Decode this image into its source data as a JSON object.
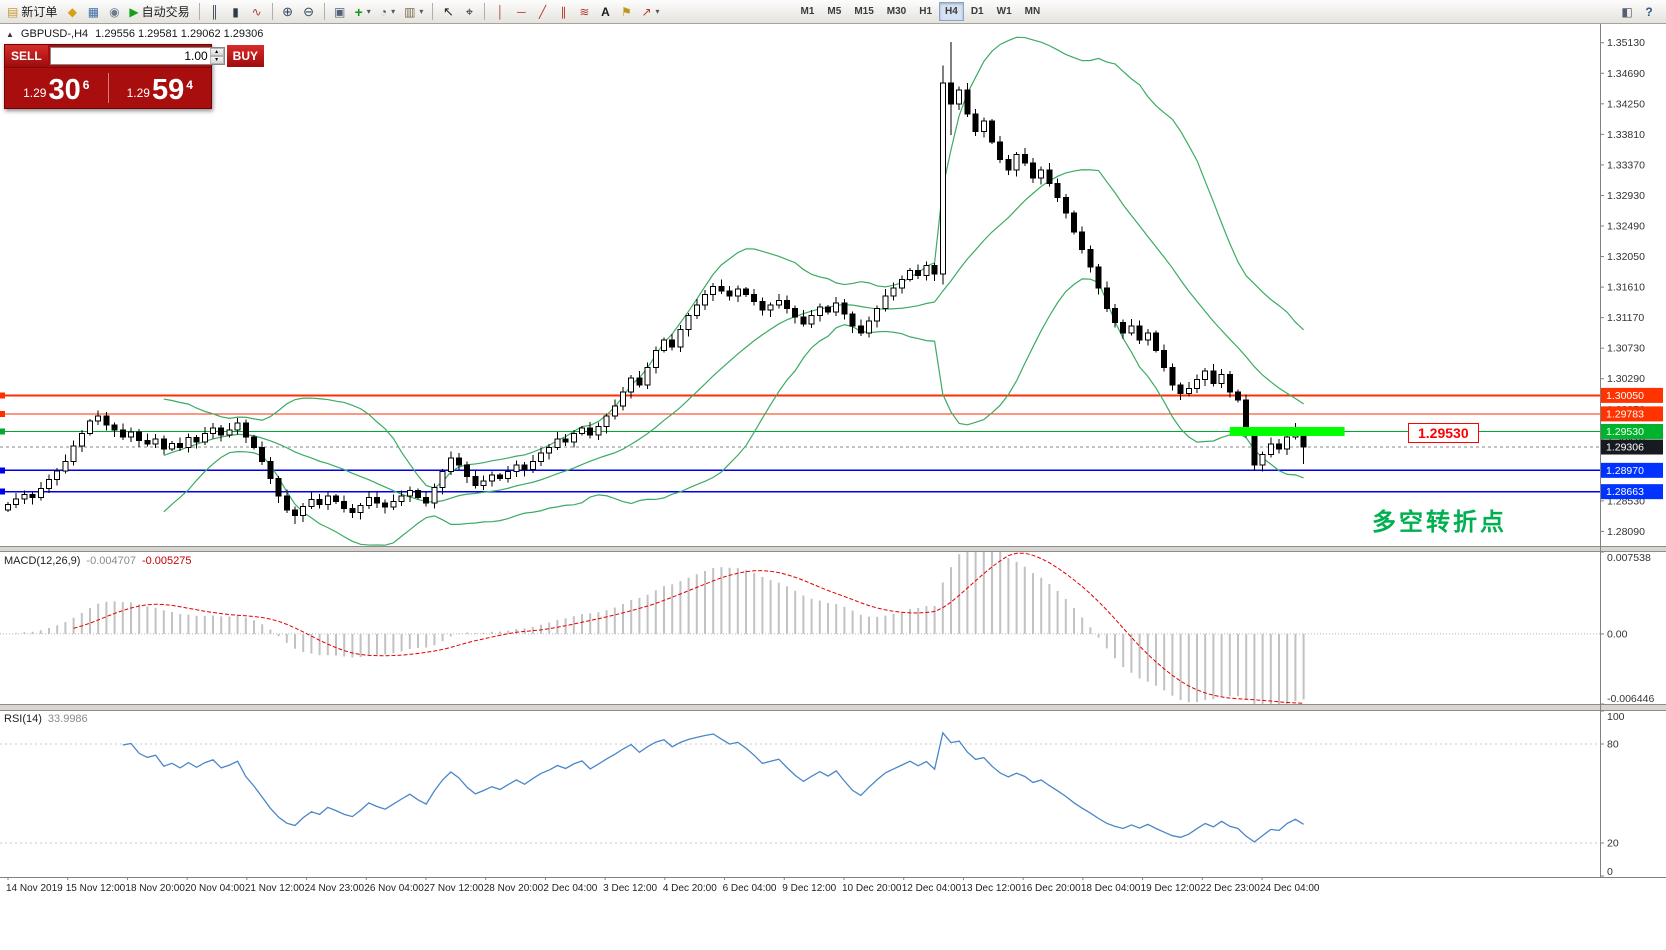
{
  "toolbar": {
    "dropdown_glyph": "▾",
    "buttons": [
      {
        "label": "新订单",
        "glyph": "▤"
      },
      {
        "glyph": "◆"
      },
      {
        "glyph": "▦"
      },
      {
        "glyph": "◉"
      },
      {
        "label": "自动交易",
        "glyph": "▶"
      },
      {
        "glyph": "║"
      },
      {
        "glyph": "▮"
      },
      {
        "glyph": "∿"
      },
      {
        "glyph": "⊕"
      },
      {
        "glyph": "⊖"
      },
      {
        "glyph": "▣"
      },
      {
        "glyph": "+"
      },
      {
        "glyph": "◔"
      },
      {
        "glyph": "▥"
      },
      {
        "glyph": "↖"
      },
      {
        "glyph": "⌖"
      },
      {
        "glyph": "│"
      },
      {
        "glyph": "─"
      },
      {
        "glyph": "╱"
      },
      {
        "glyph": "∥"
      },
      {
        "glyph": "≋"
      },
      {
        "glyph": "A"
      },
      {
        "glyph": "⚑"
      },
      {
        "glyph": "↗"
      },
      {
        "glyph": "◧"
      },
      {
        "glyph": "?"
      }
    ],
    "timeframes": [
      {
        "label": "M1"
      },
      {
        "label": "M5"
      },
      {
        "label": "M15"
      },
      {
        "label": "M30"
      },
      {
        "label": "H1"
      },
      {
        "label": "H4"
      },
      {
        "label": "D1"
      },
      {
        "label": "W1"
      },
      {
        "label": "MN"
      }
    ],
    "active_timeframe": "H4"
  },
  "chart_header": {
    "collapse_glyph": "▲",
    "symbol": "GBPUSD-,H4",
    "ohlc": "1.29556 1.29581 1.29062 1.29306"
  },
  "trade_panel": {
    "sell_label": "SELL",
    "buy_label": "BUY",
    "volume": "1.00",
    "spin_up": "▴",
    "spin_down": "▾",
    "sell_price_prefix": "1.29",
    "sell_price_big": "30",
    "sell_price_sup": "6",
    "buy_price_prefix": "1.29",
    "buy_price_big": "59",
    "buy_price_sup": "4"
  },
  "chart_data": {
    "type": "candlestick",
    "symbol": "GBPUSD-",
    "timeframe": "H4",
    "ohlc_header": {
      "open": "1.29556",
      "high": "1.29581",
      "low": "1.29062",
      "close": "1.29306"
    },
    "price_axis": {
      "min": 1.2788,
      "max": 1.354,
      "ticks": [
        "1.35130",
        "1.34690",
        "1.34250",
        "1.33810",
        "1.33370",
        "1.32930",
        "1.32490",
        "1.32050",
        "1.31610",
        "1.31170",
        "1.30730",
        "1.30290",
        "1.29850",
        "1.29410",
        "1.28970",
        "1.28530",
        "1.28090"
      ]
    },
    "candles": {
      "first_open": 1.284,
      "wick": 0.0009,
      "closes": [
        1.2848,
        1.2856,
        1.2862,
        1.2858,
        1.2871,
        1.2884,
        1.2896,
        1.291,
        1.2932,
        1.295,
        1.2968,
        1.2975,
        1.2962,
        1.2955,
        1.2945,
        1.2952,
        1.294,
        1.2935,
        1.2942,
        1.2928,
        1.2936,
        1.293,
        1.2944,
        1.2938,
        1.295,
        1.2958,
        1.2948,
        1.2955,
        1.2965,
        1.2945,
        1.293,
        1.291,
        1.2885,
        1.286,
        1.284,
        1.2832,
        1.2845,
        1.2855,
        1.2848,
        1.286,
        1.2852,
        1.2842,
        1.2836,
        1.2846,
        1.2858,
        1.285,
        1.2844,
        1.2852,
        1.286,
        1.2868,
        1.2858,
        1.285,
        1.2872,
        1.2895,
        1.2915,
        1.2905,
        1.2888,
        1.2875,
        1.2882,
        1.289,
        1.2885,
        1.2895,
        1.2905,
        1.2898,
        1.291,
        1.2922,
        1.293,
        1.2942,
        1.2938,
        1.295,
        1.2958,
        1.2948,
        1.296,
        1.2975,
        1.299,
        1.301,
        1.303,
        1.302,
        1.3045,
        1.307,
        1.3085,
        1.3075,
        1.31,
        1.312,
        1.3135,
        1.315,
        1.3162,
        1.3155,
        1.3148,
        1.3158,
        1.315,
        1.314,
        1.3128,
        1.3135,
        1.3142,
        1.313,
        1.3118,
        1.3108,
        1.312,
        1.3132,
        1.3125,
        1.3138,
        1.3122,
        1.3105,
        1.3095,
        1.3112,
        1.313,
        1.3148,
        1.316,
        1.3172,
        1.3185,
        1.3178,
        1.3192,
        1.318,
        1.3455,
        1.3425,
        1.3445,
        1.341,
        1.3385,
        1.34,
        1.337,
        1.3345,
        1.333,
        1.3352,
        1.334,
        1.3318,
        1.333,
        1.331,
        1.329,
        1.3268,
        1.324,
        1.3215,
        1.319,
        1.316,
        1.313,
        1.311,
        1.3095,
        1.3105,
        1.3085,
        1.3095,
        1.307,
        1.3045,
        1.302,
        1.3008,
        1.3015,
        1.3028,
        1.304,
        1.3022,
        1.3035,
        1.301,
        1.2998,
        1.295,
        1.2905,
        1.292,
        1.2935,
        1.2928,
        1.2945,
        1.2955,
        1.29306
      ],
      "overrides": {
        "35": [
          1.284,
          1.2845,
          1.282,
          1.2832
        ],
        "114": [
          1.318,
          1.348,
          1.3165,
          1.3455
        ],
        "115": [
          1.3455,
          1.3514,
          1.338,
          1.3425
        ],
        "152": [
          1.295,
          1.2953,
          1.2896,
          1.2905
        ],
        "158": [
          1.29556,
          1.29581,
          1.29062,
          1.29306
        ]
      }
    },
    "bollinger": {
      "period": 20,
      "deviation": 2,
      "color": "#3cab63"
    },
    "hlines": [
      {
        "price": 1.3005,
        "color": "#ff2e00",
        "width": 2,
        "label": "1.30050",
        "badge": "#ff3300"
      },
      {
        "price": 1.29783,
        "color": "#ff2e00",
        "width": 1,
        "label": "1.29783",
        "badge": "#ff3300"
      },
      {
        "price": 1.2953,
        "color": "#00a82d",
        "width": 1.4,
        "label": "1.29530",
        "badge": "#00b32c"
      },
      {
        "price": 1.2897,
        "color": "#0000e8",
        "width": 1.6,
        "label": "1.28970",
        "badge": "#0033ff"
      },
      {
        "price": 1.28663,
        "color": "#0000e8",
        "width": 1.6,
        "label": "1.28663",
        "badge": "#0033ff"
      }
    ],
    "current_price": {
      "value": 1.29306,
      "label": "1.29306",
      "badge": "#181a22"
    },
    "highlight": {
      "price": 1.2953,
      "from_index": 149,
      "to_index": 163,
      "thickness": 9,
      "color": "#00ff00"
    },
    "price_callout": {
      "text": "1.29530",
      "color": "#ff0000"
    },
    "annotation": {
      "text": "多空转折点",
      "color": "#00b050"
    },
    "macd": {
      "label": "MACD(12,26,9)",
      "value_main": "-0.004707",
      "value_signal": "-0.005275",
      "fast": 12,
      "slow": 26,
      "signal": 9,
      "max": 0.007538,
      "min": -0.006446,
      "ticks": [
        "0.007538",
        "0.00",
        "-0.006446"
      ],
      "hist_color": "#c2c2c2",
      "signal_color": "#e00000"
    },
    "rsi": {
      "label": "RSI(14)",
      "value": "33.9986",
      "period": 14,
      "levels": [
        80,
        20
      ],
      "ticks": [
        "100",
        "80",
        "20",
        "0"
      ],
      "color": "#4a86c8"
    },
    "time_axis": [
      "14 Nov 2019",
      "15 Nov 12:00",
      "18 Nov 20:00",
      "20 Nov 04:00",
      "21 Nov 12:00",
      "24 Nov 23:00",
      "26 Nov 04:00",
      "27 Nov 12:00",
      "28 Nov 20:00",
      "2 Dec 04:00",
      "3 Dec 12:00",
      "4 Dec 20:00",
      "6 Dec 04:00",
      "9 Dec 12:00",
      "10 Dec 20:00",
      "12 Dec 04:00",
      "13 Dec 12:00",
      "16 Dec 20:00",
      "18 Dec 04:00",
      "19 Dec 12:00",
      "22 Dec 23:00",
      "24 Dec 04:00"
    ]
  }
}
